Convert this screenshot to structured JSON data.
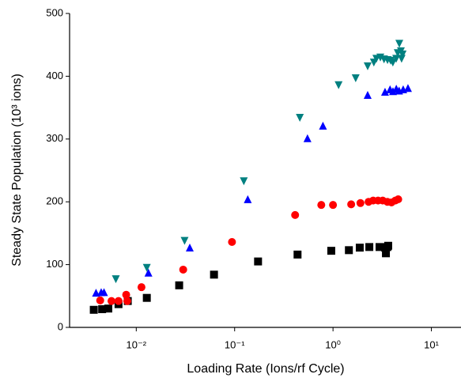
{
  "chart_data": {
    "type": "scatter",
    "x_label": "Loading Rate (Ions/rf Cycle)",
    "y_label": "Steady State Population (10³ ions)",
    "x_scale": "log",
    "xlim": [
      0.0021,
      20
    ],
    "ylim": [
      0,
      500
    ],
    "xticks": [
      {
        "value": 0.01,
        "label": "10⁻²"
      },
      {
        "value": 0.1,
        "label": "10⁻¹"
      },
      {
        "value": 1,
        "label": "10⁰"
      },
      {
        "value": 10,
        "label": "10¹"
      }
    ],
    "yticks": [
      0,
      100,
      200,
      300,
      400,
      500
    ],
    "series": [
      {
        "color": "#000000",
        "marker": "square",
        "x": [
          0.0037,
          0.0045,
          0.0052,
          0.0066,
          0.0082,
          0.0128,
          0.0273,
          0.0617,
          0.173,
          0.436,
          0.96,
          1.45,
          1.87,
          2.34,
          2.97,
          3.39,
          3.57,
          3.64,
          3.45
        ],
        "values": [
          28,
          29,
          30,
          37,
          42,
          47,
          67,
          84,
          105,
          116,
          122,
          123,
          127,
          128,
          128,
          127,
          128,
          130,
          118
        ]
      },
      {
        "color": "#ff0000",
        "marker": "circle",
        "x": [
          0.0043,
          0.0056,
          0.0066,
          0.0079,
          0.0081,
          0.0113,
          0.03,
          0.094,
          0.412,
          0.76,
          1.0,
          1.53,
          1.9,
          2.3,
          2.56,
          2.87,
          3.2,
          3.57,
          3.93,
          4.3,
          4.6
        ],
        "values": [
          43,
          42,
          42,
          52,
          42,
          64,
          92,
          136,
          179,
          195,
          195,
          196,
          198,
          200,
          202,
          202,
          202,
          200,
          199,
          202,
          204
        ]
      },
      {
        "color": "#0000ff",
        "marker": "triangle-up",
        "x": [
          0.0039,
          0.0044,
          0.0047,
          0.0133,
          0.035,
          0.136,
          0.55,
          0.79,
          2.25,
          3.38,
          4.07,
          4.7,
          5.17,
          5.78,
          4.4,
          3.8
        ],
        "values": [
          54,
          55,
          55,
          86,
          126,
          203,
          300,
          320,
          369,
          374,
          375,
          376,
          378,
          380,
          379,
          378
        ]
      },
      {
        "color": "#008080",
        "marker": "triangle-down",
        "x": [
          0.0062,
          0.0128,
          0.031,
          0.124,
          0.46,
          1.14,
          1.7,
          2.25,
          2.6,
          2.76,
          3.03,
          3.3,
          3.58,
          3.85,
          4.06,
          4.39,
          4.55,
          4.72,
          4.9,
          4.98,
          5.1
        ],
        "values": [
          78,
          96,
          139,
          234,
          335,
          387,
          398,
          417,
          423,
          429,
          431,
          428,
          427,
          426,
          423,
          429,
          438,
          453,
          441,
          429,
          436
        ]
      }
    ]
  }
}
